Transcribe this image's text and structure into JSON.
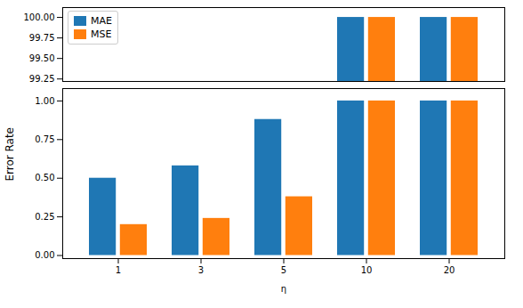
{
  "chart_data": [
    {
      "type": "bar",
      "categories": [
        "1",
        "3",
        "5",
        "10",
        "20"
      ],
      "series": [
        {
          "name": "MAE",
          "color": "#1f77b4",
          "values": [
            null,
            null,
            null,
            100.0,
            100.0
          ]
        },
        {
          "name": "MSE",
          "color": "#ff7f0e",
          "values": [
            null,
            null,
            null,
            100.0,
            100.0
          ]
        }
      ],
      "ylim": [
        99.22,
        100.12
      ],
      "yticks": [
        99.25,
        {
          "value": 99.5,
          "label": "99.50"
        },
        99.75,
        {
          "value": 100,
          "label": "100.00"
        }
      ],
      "legend": "upper left",
      "tick_labels": "y"
    },
    {
      "type": "bar",
      "categories": [
        "1",
        "3",
        "5",
        "10",
        "20"
      ],
      "series": [
        {
          "name": "MAE",
          "color": "#1f77b4",
          "values": [
            0.5,
            0.58,
            0.88,
            1.0,
            1.0
          ]
        },
        {
          "name": "MSE",
          "color": "#ff7f0e",
          "values": [
            0.2,
            0.24,
            0.38,
            1.0,
            1.0
          ]
        }
      ],
      "xlabel": "η",
      "ylabel": "Error Rate",
      "ylim": [
        -0.02,
        1.08
      ],
      "yticks": [
        {
          "value": 0,
          "label": "0.00"
        },
        0.25,
        {
          "value": 0.5,
          "label": "0.50"
        },
        0.75,
        {
          "value": 1,
          "label": "1.00"
        }
      ]
    }
  ]
}
